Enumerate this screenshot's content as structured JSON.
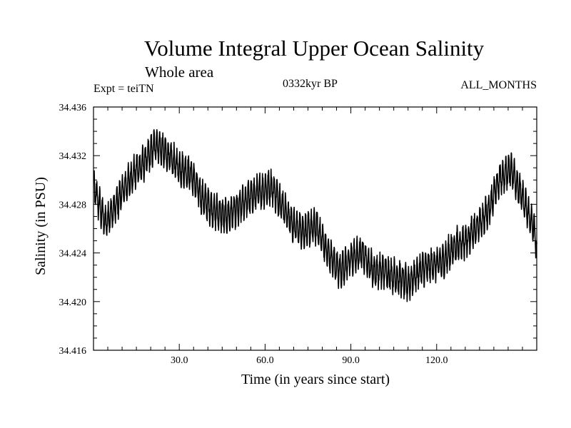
{
  "chart_data": {
    "type": "line",
    "title": "Volume Integral Upper Ocean Salinity",
    "subtitle": "Whole area",
    "experiment": "Expt = teiTN",
    "period": "0332kyr BP",
    "months": "ALL_MONTHS",
    "xlabel": "Time (in years since start)",
    "ylabel": "Salinity (in PSU)",
    "xlim": [
      0,
      155
    ],
    "ylim": [
      34.416,
      34.436
    ],
    "x_ticks": [
      30,
      60,
      90,
      120
    ],
    "x_tick_labels": [
      "30.0",
      "60.0",
      "90.0",
      "120.0"
    ],
    "y_ticks": [
      34.416,
      34.42,
      34.424,
      34.428,
      34.432,
      34.436
    ],
    "y_tick_labels": [
      "34.416",
      "34.420",
      "34.424",
      "34.428",
      "34.432",
      "34.436"
    ],
    "samples_per_year": 12,
    "series": [
      {
        "name": "Salinity",
        "trend_x": [
          0,
          2,
          4,
          7,
          10,
          14,
          18,
          22,
          26,
          30,
          34,
          38,
          42,
          46,
          50,
          54,
          58,
          62,
          66,
          70,
          74,
          78,
          82,
          86,
          90,
          94,
          98,
          102,
          106,
          110,
          114,
          118,
          122,
          126,
          130,
          134,
          138,
          142,
          146,
          150,
          154,
          155
        ],
        "trend_y": [
          34.4295,
          34.428,
          34.4265,
          34.4275,
          34.429,
          34.4305,
          34.4315,
          34.433,
          34.432,
          34.431,
          34.4305,
          34.4285,
          34.4275,
          34.427,
          34.4275,
          34.4285,
          34.429,
          34.4295,
          34.428,
          34.4262,
          34.4258,
          34.4262,
          34.424,
          34.4225,
          34.4235,
          34.424,
          34.4225,
          34.4225,
          34.422,
          34.4215,
          34.4225,
          34.423,
          34.4232,
          34.4245,
          34.425,
          34.426,
          34.4275,
          34.43,
          34.431,
          34.4285,
          34.426,
          34.4245
        ],
        "seasonal_amplitude": 0.0012
      }
    ]
  }
}
